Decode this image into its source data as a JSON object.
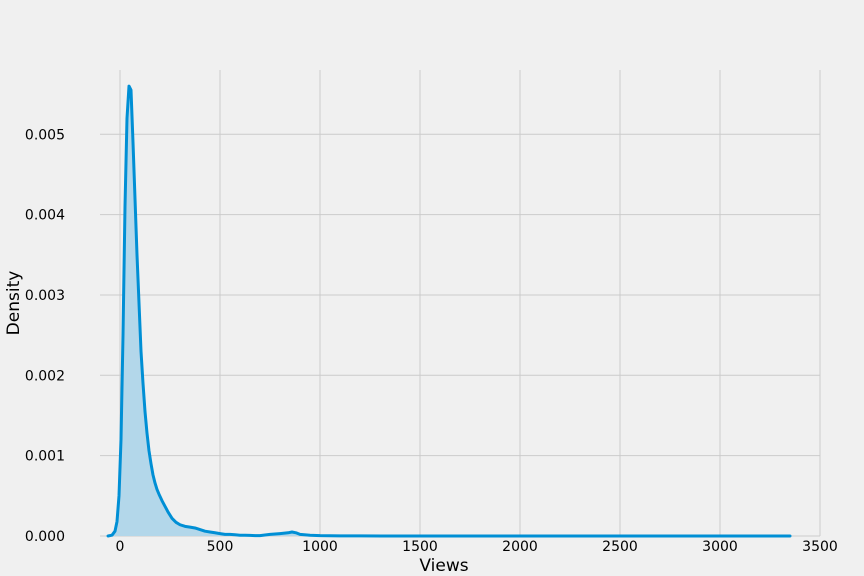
{
  "chart_data": {
    "type": "area",
    "title": "",
    "xlabel": "Views",
    "ylabel": "Density",
    "xlim": [
      -100,
      3500
    ],
    "ylim": [
      0,
      0.0058
    ],
    "xticks": [
      0,
      500,
      1000,
      1500,
      2000,
      2500,
      3000,
      3500
    ],
    "xtick_labels": [
      "0",
      "500",
      "1000",
      "1500",
      "2000",
      "2500",
      "3000",
      "3500"
    ],
    "yticks": [
      0,
      0.001,
      0.002,
      0.003,
      0.004,
      0.005
    ],
    "ytick_labels": [
      "0.000",
      "0.001",
      "0.002",
      "0.003",
      "0.004",
      "0.005"
    ],
    "grid": true,
    "line_color": "#008fd5",
    "fill_color": "#b3d7ea",
    "series": [
      {
        "x": [
          -60,
          -40,
          -25,
          -15,
          -5,
          5,
          15,
          25,
          35,
          45,
          55,
          65,
          75,
          85,
          95,
          105,
          115,
          125,
          135,
          145,
          155,
          165,
          175,
          185,
          195,
          210,
          225,
          240,
          260,
          280,
          300,
          325,
          350,
          375,
          400,
          425,
          450,
          475,
          500,
          525,
          550,
          575,
          600,
          625,
          650,
          675,
          700,
          750,
          800,
          840,
          860,
          880,
          900,
          950,
          1000,
          1050,
          1100,
          1200,
          1400,
          1600,
          2000,
          2500,
          3000,
          3350
        ],
        "y": [
          0,
          1e-05,
          6e-05,
          0.00018,
          0.0005,
          0.0012,
          0.0025,
          0.0041,
          0.0052,
          0.0056,
          0.00555,
          0.0049,
          0.0042,
          0.0035,
          0.0029,
          0.0023,
          0.0019,
          0.00155,
          0.00128,
          0.00106,
          0.0009,
          0.00076,
          0.00066,
          0.00058,
          0.00052,
          0.00044,
          0.00037,
          0.0003,
          0.00022,
          0.00017,
          0.00014,
          0.00012,
          0.00011,
          0.0001,
          8e-05,
          6e-05,
          5e-05,
          4e-05,
          3e-05,
          2e-05,
          2e-05,
          1.5e-05,
          1e-05,
          1e-05,
          8e-06,
          5e-06,
          5e-06,
          2e-05,
          3e-05,
          4e-05,
          5e-05,
          4e-05,
          2e-05,
          1e-05,
          5e-06,
          3e-06,
          2e-06,
          1e-06,
          5e-07,
          3e-07,
          2e-07,
          1e-07,
          1e-07,
          1e-07
        ]
      }
    ]
  }
}
